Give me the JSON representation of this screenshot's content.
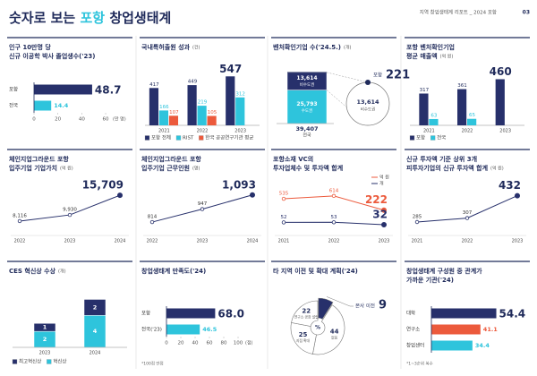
{
  "header": {
    "title_start": "숫자로 보는",
    "title_highlight": "포항",
    "title_end": "창업생태계",
    "report": "지역 창업생태계 리포트 _ 2024 포항",
    "page": "03"
  },
  "chart_data": [
    {
      "type": "hbar",
      "title": [
        "인구 10만명 당",
        "신규 이공학 박사 졸업생수('23)"
      ],
      "categories": [
        "포항",
        "전국"
      ],
      "values": [
        48.7,
        14.4
      ],
      "colors": [
        "#27306b",
        "#2ec4dc"
      ],
      "xlim": [
        0,
        60
      ],
      "xticks": [
        0,
        20,
        40,
        60
      ],
      "x_unit": "(만 명)"
    },
    {
      "type": "grouped_bar",
      "title": [
        "국내특허출원 성과"
      ],
      "unit": "(건)",
      "categories": [
        "2021",
        "2022",
        "2023"
      ],
      "series": [
        {
          "name": "포항 전체",
          "color": "#27306b",
          "values": [
            417,
            449,
            547
          ]
        },
        {
          "name": "RIST",
          "color": "#2ec4dc",
          "values": [
            166,
            219,
            312
          ]
        },
        {
          "name": "한국 공공연구기관 평균",
          "color": "#ec5a3c",
          "values": [
            107,
            105,
            null
          ]
        }
      ],
      "ylim": [
        0,
        560
      ],
      "legend": true
    },
    {
      "type": "stacked_bar",
      "title": [
        "벤처확인기업 수('24.5.)"
      ],
      "unit": "(개)",
      "categories": [
        "전국"
      ],
      "series": [
        {
          "name": "비수도권",
          "color": "#27306b",
          "values": [
            13614
          ],
          "value_labels": [
            "13,614"
          ]
        },
        {
          "name": "수도권",
          "color": "#2ec4dc",
          "values": [
            25793
          ],
          "value_labels": [
            "25,793"
          ]
        }
      ],
      "totals": [
        39407
      ],
      "total_labels": [
        "39,407"
      ],
      "ylim": [
        0,
        40000
      ],
      "callout": {
        "name": "포항",
        "value": 221
      }
    },
    {
      "type": "grouped_bar",
      "title": [
        "포항 벤처확인기업",
        "평균 매출액"
      ],
      "unit": "(억 원)",
      "categories": [
        "2021",
        "2022",
        "2023"
      ],
      "series": [
        {
          "name": "포항",
          "color": "#27306b",
          "values": [
            317,
            361,
            460
          ]
        },
        {
          "name": "전국",
          "color": "#2ec4dc",
          "values": [
            63,
            65,
            null
          ]
        }
      ],
      "ylim": [
        0,
        500
      ],
      "legend": true
    },
    {
      "type": "line",
      "title": [
        "체인지업그라운드 포항",
        "입주기업 기업가치"
      ],
      "unit": "(억 원)",
      "x": [
        "2022",
        "2023",
        "2024"
      ],
      "values": [
        8116,
        9930,
        15709
      ],
      "value_labels": [
        "8,116",
        "9,930",
        "15,709"
      ],
      "color": "#27306b",
      "ylim": [
        6000,
        16000
      ]
    },
    {
      "type": "line",
      "title": [
        "체인지업그라운드 포항",
        "입주기업 근무인원"
      ],
      "unit": "(명)",
      "x": [
        "2022",
        "2023",
        "2024"
      ],
      "values": [
        814,
        947,
        1093
      ],
      "value_labels": [
        "814",
        "947",
        "1,093"
      ],
      "color": "#27306b",
      "ylim": [
        750,
        1100
      ]
    },
    {
      "type": "line",
      "title": [
        "포항소재 VC의",
        "투자업체수 및 투자액 합계"
      ],
      "x": [
        "2021",
        "2022",
        "2023"
      ],
      "series": [
        {
          "name": "억 원",
          "color": "#ec5a3c",
          "values": [
            535,
            614,
            222
          ]
        },
        {
          "name": "개",
          "color": "#27306b",
          "values": [
            52,
            53,
            32
          ],
          "axis": "y2"
        }
      ],
      "ylim": [
        -280,
        660
      ],
      "y2lim": [
        0,
        300
      ],
      "legend": true
    },
    {
      "type": "line",
      "title": [
        "신규 투자액 기준 상위 3개",
        "피투자기업의 신규 투자액 합계"
      ],
      "unit": "(억 원)",
      "x": [
        "2021",
        "2022",
        "2023"
      ],
      "values": [
        285,
        307,
        432
      ],
      "color": "#27306b",
      "ylim": [
        250,
        440
      ]
    },
    {
      "type": "stacked_bar",
      "title": [
        "CES 혁신상 수상"
      ],
      "unit": "(개)",
      "categories": [
        "2023",
        "2024"
      ],
      "series": [
        {
          "name": "최고혁신상",
          "color": "#27306b",
          "values": [
            1,
            2
          ]
        },
        {
          "name": "혁신상",
          "color": "#2ec4dc",
          "values": [
            2,
            4
          ]
        }
      ],
      "ylim": [
        0,
        6.5
      ],
      "legend": true
    },
    {
      "type": "hbar",
      "title": [
        "창업생태계 만족도('24)"
      ],
      "categories": [
        "포항",
        "전국('23)"
      ],
      "values": [
        68.0,
        46.5
      ],
      "value_labels": [
        "68.0",
        "46.5"
      ],
      "colors": [
        "#27306b",
        "#2ec4dc"
      ],
      "xlim": [
        0,
        100
      ],
      "xticks": [
        0,
        20,
        40,
        60,
        80,
        100
      ],
      "x_unit": "(점)",
      "note": "*100점 만점"
    },
    {
      "type": "pie",
      "title": [
        "타 지역 이전 및 확대 계획('24)"
      ],
      "categories": [
        "본사 이전",
        "없음",
        "지점 확대",
        "연구소·공장 설립"
      ],
      "values": [
        9,
        44,
        25,
        22
      ],
      "colors": [
        "#27306b",
        "#ffffff",
        "#ffffff",
        "#ffffff"
      ],
      "center_label": "%"
    },
    {
      "type": "hbar",
      "title": [
        "창업생태계 구성원 중 관계가",
        "가까운 기관('24)"
      ],
      "categories": [
        "대학",
        "연구소",
        "창업센터"
      ],
      "values": [
        54.4,
        41.1,
        34.4
      ],
      "colors": [
        "#27306b",
        "#ec5a3c",
        "#2ec4dc"
      ],
      "xlim": [
        0,
        60
      ],
      "note": "*1~3순위 복수"
    }
  ]
}
